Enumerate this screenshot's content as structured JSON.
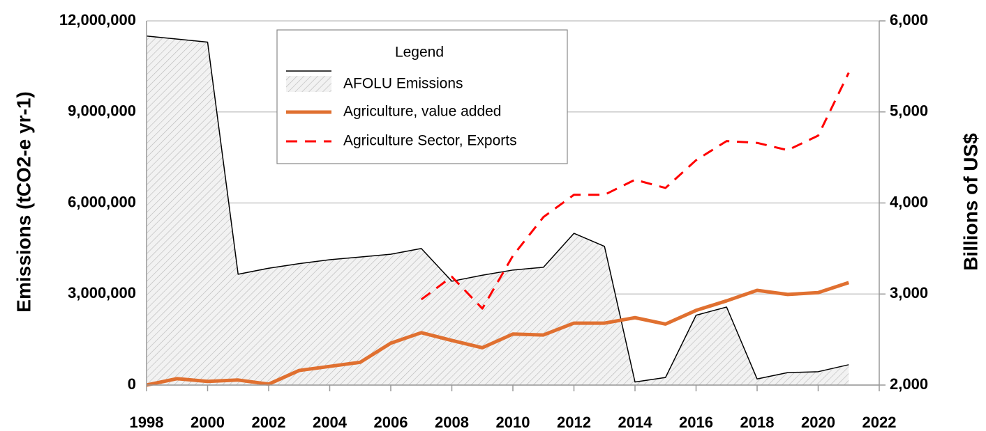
{
  "chart_data": {
    "type": "line",
    "ylabel": "Emissions (tCO2-e yr-1)",
    "y2label": "Billions of US$",
    "legend_title": "Legend",
    "legend": "upper center",
    "grid": true,
    "x": [
      1998,
      1999,
      2000,
      2001,
      2002,
      2003,
      2004,
      2005,
      2006,
      2007,
      2008,
      2009,
      2010,
      2011,
      2012,
      2013,
      2014,
      2015,
      2016,
      2017,
      2018,
      2019,
      2020,
      2021
    ],
    "xlim": [
      1998,
      2022
    ],
    "xticks": [
      1998,
      2000,
      2002,
      2004,
      2006,
      2008,
      2010,
      2012,
      2014,
      2016,
      2018,
      2020,
      2022
    ],
    "ylim": [
      0,
      12000000
    ],
    "yticks": [
      0,
      {
        "value": 3000000,
        "label": "3,000,000"
      },
      {
        "value": 6000000,
        "label": "6,000,000"
      },
      {
        "value": 9000000,
        "label": "9,000,000"
      },
      {
        "value": 12000000,
        "label": "12,000,000"
      }
    ],
    "y2lim": [
      2000,
      6000
    ],
    "y2ticks": [
      {
        "value": 2000,
        "label": "2,000"
      },
      {
        "value": 3000,
        "label": "3,000"
      },
      {
        "value": 4000,
        "label": "4,000"
      },
      {
        "value": 5000,
        "label": "5,000"
      },
      {
        "value": 6000,
        "label": "6,000"
      }
    ],
    "series": [
      {
        "name": "AFOLU Emissions",
        "color": "#000000",
        "fill": "hatch",
        "values": [
          11500000,
          11400000,
          11300000,
          3650000,
          3850000,
          4000000,
          4130000,
          4220000,
          4310000,
          4500000,
          3420000,
          3620000,
          3790000,
          3880000,
          5000000,
          4570000,
          100000,
          250000,
          2300000,
          2570000,
          200000,
          410000,
          440000,
          670000
        ]
      },
      {
        "name": "Agriculture, value added",
        "color": "#e07030",
        "axis": "y2",
        "values": [
          2000,
          2070,
          2040,
          2055,
          2010,
          2160,
          2205,
          2250,
          2460,
          2575,
          2490,
          2410,
          2560,
          2550,
          2680,
          2680,
          2740,
          2670,
          2820,
          2925,
          3040,
          2995,
          3015,
          3125
        ]
      },
      {
        "name": "Agriculture Sector, Exports",
        "color": "#ff0000",
        "axis": "y2",
        "dashed": true,
        "values": [
          null,
          null,
          null,
          null,
          null,
          null,
          null,
          null,
          null,
          2940,
          3190,
          2840,
          3420,
          3845,
          4090,
          4090,
          4255,
          4165,
          4470,
          4680,
          4660,
          4580,
          4740,
          5430
        ]
      }
    ]
  }
}
